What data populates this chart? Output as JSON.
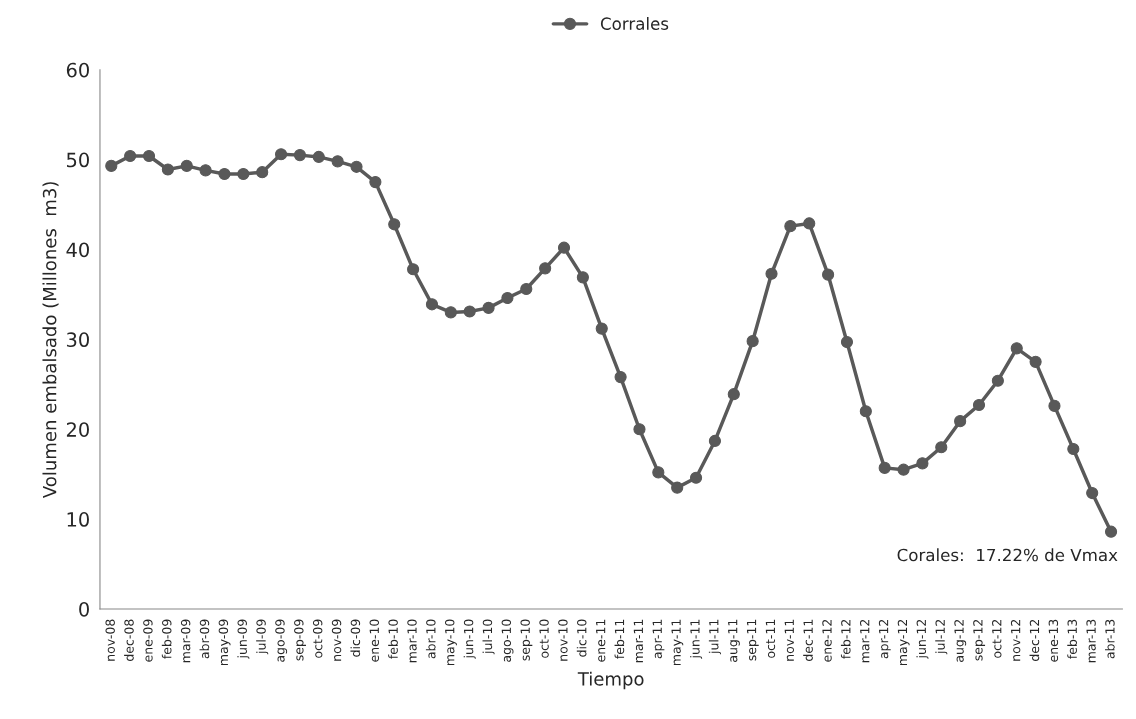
{
  "chart_data": {
    "type": "line",
    "xlabel": "Tiempo",
    "ylabel": "Volumen embalsado (Millones  m3)",
    "categories": [
      "nov-08",
      "dec-08",
      "ene-09",
      "feb-09",
      "mar-09",
      "abr-09",
      "may-09",
      "jun-09",
      "jul-09",
      "ago-09",
      "sep-09",
      "oct-09",
      "nov-09",
      "dic-09",
      "ene-10",
      "feb-10",
      "mar-10",
      "abr-10",
      "may-10",
      "jun-10",
      "jul-10",
      "ago-10",
      "sep-10",
      "oct-10",
      "nov-10",
      "dic-10",
      "ene-11",
      "feb-11",
      "mar-11",
      "apr-11",
      "may-11",
      "jun-11",
      "jul-11",
      "aug-11",
      "sep-11",
      "oct-11",
      "nov-11",
      "dec-11",
      "ene-12",
      "feb-12",
      "mar-12",
      "apr-12",
      "may-12",
      "jun-12",
      "jul-12",
      "aug-12",
      "sep-12",
      "oct-12",
      "nov-12",
      "dec-12",
      "ene-13",
      "feb-13",
      "mar-13",
      "abr-13"
    ],
    "series": [
      {
        "name": "Corrales",
        "color": "#595959",
        "values": [
          49.3,
          50.4,
          50.4,
          48.9,
          49.3,
          48.8,
          48.4,
          48.4,
          48.6,
          50.6,
          50.5,
          50.3,
          49.8,
          49.2,
          47.5,
          42.8,
          37.8,
          33.9,
          33.0,
          33.1,
          33.5,
          34.6,
          35.6,
          37.9,
          40.2,
          36.9,
          31.2,
          25.8,
          20.0,
          15.2,
          13.5,
          14.6,
          18.7,
          23.9,
          29.8,
          37.3,
          42.6,
          42.9,
          37.2,
          29.7,
          22.0,
          15.7,
          15.5,
          16.2,
          18.0,
          20.9,
          22.7,
          25.4,
          29.0,
          27.5,
          22.6,
          17.8,
          12.9,
          8.6
        ]
      }
    ],
    "ylim": [
      0,
      60
    ],
    "yticks": [
      0,
      10,
      20,
      30,
      40,
      50,
      60
    ],
    "grid": false,
    "legend": "top",
    "marker": "circle",
    "line_style": "solid",
    "annotations": [
      {
        "text": "Corales:  17.22% de Vmax",
        "x": "abr-13",
        "y": 8.6
      }
    ]
  }
}
